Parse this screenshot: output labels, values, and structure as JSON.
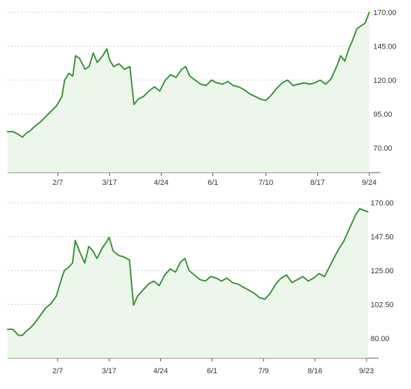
{
  "theme": {
    "line": "#3d8b3d",
    "fill": "#e6f3e3",
    "grid": "#c8c8c8",
    "axis": "#555555",
    "text": "#333333"
  },
  "chart_data": [
    {
      "type": "area",
      "title": "",
      "xlabel": "",
      "ylabel": "",
      "ylim": [
        70,
        170
      ],
      "yticks": [
        "170.00",
        "145.00",
        "120.00",
        "95.00",
        "70.00"
      ],
      "ytick_values": [
        170,
        145,
        120,
        95,
        70
      ],
      "xticks": [
        {
          "label": "2/7",
          "x": 37
        },
        {
          "label": "3/17",
          "x": 75
        },
        {
          "label": "4/24",
          "x": 113
        },
        {
          "label": "6/1",
          "x": 151
        },
        {
          "label": "7/10",
          "x": 190
        },
        {
          "label": "8/17",
          "x": 228
        },
        {
          "label": "9/24",
          "x": 266
        }
      ],
      "xlim": [
        0,
        266
      ],
      "grid": true,
      "x": [
        0,
        4,
        8,
        11,
        14,
        17,
        20,
        24,
        28,
        32,
        36,
        40,
        42,
        45,
        48,
        50,
        53,
        57,
        60,
        63,
        66,
        70,
        73,
        75,
        78,
        82,
        86,
        90,
        93,
        96,
        100,
        104,
        108,
        112,
        116,
        120,
        124,
        128,
        131,
        134,
        138,
        142,
        146,
        150,
        154,
        158,
        162,
        166,
        170,
        174,
        178,
        182,
        186,
        190,
        194,
        198,
        202,
        206,
        210,
        214,
        218,
        222,
        226,
        230,
        234,
        238,
        242,
        245,
        248,
        251,
        254,
        257,
        260,
        263,
        266
      ],
      "y": [
        82,
        82,
        80,
        78,
        81,
        83,
        86,
        89,
        93,
        97,
        101,
        108,
        120,
        125,
        123,
        138,
        136,
        128,
        130,
        140,
        133,
        138,
        143,
        135,
        130,
        132,
        128,
        130,
        102,
        106,
        108,
        112,
        115,
        112,
        120,
        124,
        122,
        128,
        130,
        123,
        120,
        117,
        116,
        120,
        118,
        117,
        119,
        116,
        115,
        113,
        110,
        108,
        106,
        105,
        109,
        114,
        118,
        120,
        116,
        117,
        118,
        117,
        118,
        120,
        117,
        121,
        130,
        138,
        134,
        143,
        150,
        158,
        160,
        162,
        170
      ]
    },
    {
      "type": "area",
      "title": "",
      "xlabel": "",
      "ylabel": "",
      "ylim": [
        80,
        170
      ],
      "yticks": [
        "170.00",
        "147.50",
        "125.00",
        "102.50",
        "80.00"
      ],
      "ytick_values": [
        170,
        147.5,
        125,
        102.5,
        80
      ],
      "xticks": [
        {
          "label": "2/7",
          "x": 37
        },
        {
          "label": "3/17",
          "x": 75
        },
        {
          "label": "4/24",
          "x": 113
        },
        {
          "label": "6/1",
          "x": 151
        },
        {
          "label": "7/9",
          "x": 189
        },
        {
          "label": "8/16",
          "x": 227
        },
        {
          "label": "9/23",
          "x": 265
        }
      ],
      "xlim": [
        0,
        266
      ],
      "grid": true,
      "x": [
        0,
        4,
        8,
        11,
        14,
        17,
        20,
        24,
        28,
        32,
        36,
        40,
        42,
        45,
        48,
        50,
        53,
        57,
        60,
        63,
        66,
        70,
        73,
        75,
        78,
        82,
        86,
        90,
        93,
        96,
        100,
        104,
        108,
        112,
        116,
        120,
        124,
        128,
        131,
        134,
        138,
        142,
        146,
        150,
        154,
        158,
        162,
        166,
        170,
        174,
        178,
        182,
        186,
        190,
        194,
        198,
        202,
        206,
        210,
        214,
        218,
        222,
        226,
        230,
        234,
        238,
        242,
        245,
        248,
        251,
        254,
        257,
        260,
        263,
        266
      ],
      "y": [
        86,
        86,
        82,
        82,
        85,
        87,
        90,
        95,
        100,
        103,
        108,
        120,
        125,
        127,
        130,
        145,
        138,
        130,
        141,
        138,
        133,
        140,
        144,
        147,
        138,
        135,
        134,
        132,
        102,
        108,
        112,
        116,
        118,
        115,
        122,
        126,
        124,
        131,
        133,
        125,
        122,
        119,
        118,
        121,
        120,
        118,
        120,
        117,
        116,
        114,
        112,
        110,
        107,
        106,
        110,
        116,
        120,
        122,
        117,
        119,
        121,
        118,
        120,
        123,
        121,
        128,
        135,
        140,
        144,
        150,
        156,
        162,
        166,
        165,
        164
      ]
    }
  ]
}
